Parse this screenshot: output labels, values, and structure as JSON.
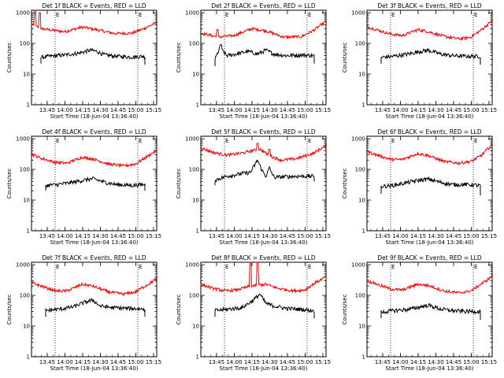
{
  "page": {
    "background": "#ffffff",
    "axis_color": "#000000"
  },
  "shared": {
    "ylabel": "Counts/sec",
    "xlabel": "Start Time (18-Jun-04 13:36:40)",
    "x_ticks": [
      "13:45",
      "14:00",
      "14:15",
      "14:30",
      "14:45",
      "15:00",
      "15:15"
    ],
    "x_tick_minutes": [
      13.3,
      28.3,
      43.3,
      58.3,
      73.3,
      88.3,
      103.3
    ],
    "xlim_minutes": [
      0,
      106
    ],
    "y_ticks": [
      "1",
      "10",
      "100",
      "1000"
    ],
    "y_tick_values": [
      1,
      10,
      100,
      1000
    ],
    "ylim": [
      1,
      1200
    ],
    "yscale": "log",
    "marker_minutes": [
      20,
      90
    ],
    "marker_labels": [
      "E",
      "E"
    ],
    "series_names": [
      "Events",
      "LLD"
    ],
    "series_colors": {
      "Events": "#000000",
      "LLD": "#ff0000"
    }
  },
  "chart_data": [
    {
      "type": "line",
      "title": "Det 1f BLACK = Events, RED = LLD",
      "lld": {
        "knots": [
          [
            0,
            420
          ],
          [
            8,
            300
          ],
          [
            28,
            240
          ],
          [
            43,
            340
          ],
          [
            55,
            280
          ],
          [
            70,
            210
          ],
          [
            85,
            215
          ],
          [
            95,
            300
          ],
          [
            106,
            480
          ]
        ],
        "spikes": [
          [
            3,
            1200
          ],
          [
            7,
            1000
          ]
        ]
      },
      "events": {
        "start": 8,
        "end": 96,
        "start_value": 22,
        "knots": [
          [
            8,
            35
          ],
          [
            15,
            38
          ],
          [
            28,
            42
          ],
          [
            40,
            48
          ],
          [
            50,
            60
          ],
          [
            55,
            55
          ],
          [
            62,
            42
          ],
          [
            72,
            38
          ],
          [
            85,
            36
          ],
          [
            95,
            38
          ]
        ],
        "spikes": [],
        "end_value": 20
      }
    },
    {
      "type": "line",
      "title": "Det 2f BLACK = Events, RED = LLD",
      "lld": {
        "knots": [
          [
            0,
            220
          ],
          [
            14,
            160
          ],
          [
            28,
            180
          ],
          [
            43,
            300
          ],
          [
            55,
            260
          ],
          [
            70,
            160
          ],
          [
            85,
            165
          ],
          [
            95,
            260
          ],
          [
            106,
            520
          ]
        ],
        "spikes": [
          [
            14,
            280
          ]
        ]
      },
      "events": {
        "start": 12,
        "end": 96,
        "start_value": 18,
        "knots": [
          [
            12,
            30
          ],
          [
            16,
            70
          ],
          [
            22,
            40
          ],
          [
            30,
            45
          ],
          [
            40,
            55
          ],
          [
            48,
            45
          ],
          [
            55,
            60
          ],
          [
            62,
            45
          ],
          [
            72,
            40
          ],
          [
            85,
            42
          ],
          [
            95,
            40
          ]
        ],
        "spikes": [
          [
            17,
            90
          ]
        ],
        "end_value": 22
      }
    },
    {
      "type": "line",
      "title": "Det 3f BLACK = Events, RED = LLD",
      "lld": {
        "knots": [
          [
            0,
            350
          ],
          [
            8,
            280
          ],
          [
            20,
            200
          ],
          [
            30,
            180
          ],
          [
            43,
            280
          ],
          [
            52,
            240
          ],
          [
            65,
            170
          ],
          [
            78,
            140
          ],
          [
            88,
            160
          ],
          [
            97,
            280
          ],
          [
            106,
            550
          ]
        ],
        "spikes": []
      },
      "events": {
        "start": 12,
        "end": 96,
        "start_value": 22,
        "knots": [
          [
            12,
            35
          ],
          [
            22,
            38
          ],
          [
            35,
            45
          ],
          [
            45,
            55
          ],
          [
            52,
            60
          ],
          [
            62,
            45
          ],
          [
            72,
            40
          ],
          [
            85,
            38
          ],
          [
            95,
            38
          ]
        ],
        "spikes": [],
        "end_value": 20
      }
    },
    {
      "type": "line",
      "title": "Det 4f BLACK = Events, RED = LLD",
      "lld": {
        "knots": [
          [
            0,
            320
          ],
          [
            8,
            230
          ],
          [
            20,
            170
          ],
          [
            30,
            160
          ],
          [
            43,
            250
          ],
          [
            52,
            220
          ],
          [
            65,
            150
          ],
          [
            78,
            130
          ],
          [
            88,
            150
          ],
          [
            97,
            250
          ],
          [
            106,
            420
          ]
        ],
        "spikes": []
      },
      "events": {
        "start": 12,
        "end": 96,
        "start_value": 20,
        "knots": [
          [
            12,
            30
          ],
          [
            22,
            32
          ],
          [
            35,
            38
          ],
          [
            45,
            45
          ],
          [
            52,
            50
          ],
          [
            62,
            38
          ],
          [
            72,
            32
          ],
          [
            85,
            30
          ],
          [
            95,
            32
          ]
        ],
        "spikes": [],
        "end_value": 20
      }
    },
    {
      "type": "line",
      "title": "Det 5f BLACK = Events, RED = LLD",
      "lld": {
        "knots": [
          [
            0,
            500
          ],
          [
            10,
            360
          ],
          [
            22,
            290
          ],
          [
            35,
            340
          ],
          [
            45,
            420
          ],
          [
            50,
            460
          ],
          [
            58,
            280
          ],
          [
            68,
            200
          ],
          [
            80,
            220
          ],
          [
            95,
            330
          ],
          [
            106,
            600
          ]
        ],
        "spikes": [
          [
            48,
            700
          ],
          [
            58,
            450
          ]
        ]
      },
      "events": {
        "start": 12,
        "end": 96,
        "start_value": 30,
        "knots": [
          [
            12,
            45
          ],
          [
            22,
            60
          ],
          [
            32,
            70
          ],
          [
            42,
            80
          ],
          [
            48,
            200
          ],
          [
            52,
            90
          ],
          [
            55,
            60
          ],
          [
            58,
            110
          ],
          [
            62,
            55
          ],
          [
            72,
            58
          ],
          [
            85,
            60
          ],
          [
            95,
            60
          ]
        ],
        "spikes": [],
        "end_value": 40
      }
    },
    {
      "type": "line",
      "title": "Det 6f BLACK = Events, RED = LLD",
      "lld": {
        "knots": [
          [
            0,
            380
          ],
          [
            10,
            280
          ],
          [
            20,
            210
          ],
          [
            30,
            210
          ],
          [
            43,
            330
          ],
          [
            52,
            280
          ],
          [
            65,
            180
          ],
          [
            78,
            160
          ],
          [
            88,
            180
          ],
          [
            97,
            290
          ],
          [
            106,
            650
          ]
        ],
        "spikes": []
      },
      "events": {
        "start": 12,
        "end": 96,
        "start_value": 16,
        "knots": [
          [
            12,
            28
          ],
          [
            22,
            30
          ],
          [
            35,
            38
          ],
          [
            45,
            45
          ],
          [
            52,
            48
          ],
          [
            62,
            38
          ],
          [
            72,
            32
          ],
          [
            85,
            32
          ],
          [
            95,
            30
          ]
        ],
        "spikes": [],
        "end_value": 14
      }
    },
    {
      "type": "line",
      "title": "Det 7f BLACK = Events, RED = LLD",
      "lld": {
        "knots": [
          [
            0,
            260
          ],
          [
            10,
            190
          ],
          [
            20,
            140
          ],
          [
            30,
            140
          ],
          [
            43,
            230
          ],
          [
            52,
            200
          ],
          [
            65,
            130
          ],
          [
            78,
            110
          ],
          [
            88,
            130
          ],
          [
            97,
            210
          ],
          [
            106,
            350
          ]
        ],
        "spikes": []
      },
      "events": {
        "start": 12,
        "end": 96,
        "start_value": 20,
        "knots": [
          [
            12,
            32
          ],
          [
            22,
            35
          ],
          [
            35,
            42
          ],
          [
            45,
            60
          ],
          [
            52,
            70
          ],
          [
            58,
            45
          ],
          [
            68,
            40
          ],
          [
            80,
            38
          ],
          [
            95,
            36
          ]
        ],
        "spikes": [],
        "end_value": 20
      }
    },
    {
      "type": "line",
      "title": "Det 8f BLACK = Events, RED = LLD",
      "lld": {
        "knots": [
          [
            0,
            230
          ],
          [
            10,
            170
          ],
          [
            20,
            140
          ],
          [
            30,
            150
          ],
          [
            42,
            200
          ],
          [
            55,
            230
          ],
          [
            65,
            170
          ],
          [
            78,
            140
          ],
          [
            88,
            150
          ],
          [
            97,
            260
          ],
          [
            106,
            400
          ]
        ],
        "spikes": [
          [
            42,
            1200
          ],
          [
            48,
            1200
          ]
        ]
      },
      "events": {
        "start": 12,
        "end": 96,
        "start_value": 20,
        "knots": [
          [
            12,
            32
          ],
          [
            22,
            35
          ],
          [
            35,
            40
          ],
          [
            42,
            60
          ],
          [
            46,
            80
          ],
          [
            50,
            110
          ],
          [
            55,
            55
          ],
          [
            62,
            45
          ],
          [
            72,
            38
          ],
          [
            85,
            35
          ],
          [
            95,
            32
          ]
        ],
        "spikes": [],
        "end_value": 18
      }
    },
    {
      "type": "line",
      "title": "Det 9f BLACK = Events, RED = LLD",
      "lld": {
        "knots": [
          [
            0,
            300
          ],
          [
            10,
            220
          ],
          [
            20,
            160
          ],
          [
            30,
            150
          ],
          [
            43,
            230
          ],
          [
            52,
            210
          ],
          [
            65,
            140
          ],
          [
            78,
            120
          ],
          [
            88,
            140
          ],
          [
            97,
            240
          ],
          [
            106,
            420
          ]
        ],
        "spikes": []
      },
      "events": {
        "start": 12,
        "end": 96,
        "start_value": 18,
        "knots": [
          [
            12,
            28
          ],
          [
            22,
            32
          ],
          [
            35,
            35
          ],
          [
            45,
            42
          ],
          [
            52,
            48
          ],
          [
            62,
            36
          ],
          [
            72,
            32
          ],
          [
            85,
            30
          ],
          [
            95,
            30
          ]
        ],
        "spikes": [],
        "end_value": 16
      }
    }
  ]
}
